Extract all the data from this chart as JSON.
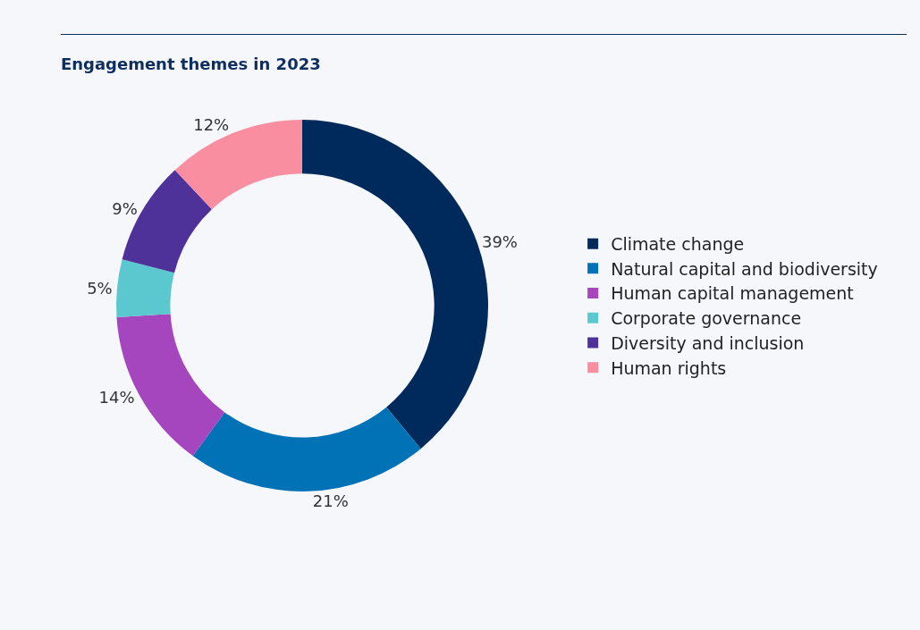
{
  "chart_data": {
    "type": "donut",
    "title": "Engagement themes in 2023",
    "categories": [
      "Climate change",
      "Natural capital and biodiversity",
      "Human capital management",
      "Corporate governance",
      "Diversity and inclusion",
      "Human rights"
    ],
    "values": [
      39,
      21,
      14,
      5,
      9,
      12
    ],
    "value_labels": [
      "39%",
      "21%",
      "14%",
      "5%",
      "9%",
      "12%"
    ],
    "colors": [
      "#002a5c",
      "#0072b5",
      "#a546be",
      "#5bc8cf",
      "#4e3299",
      "#f98ea0"
    ],
    "legend": "right"
  }
}
